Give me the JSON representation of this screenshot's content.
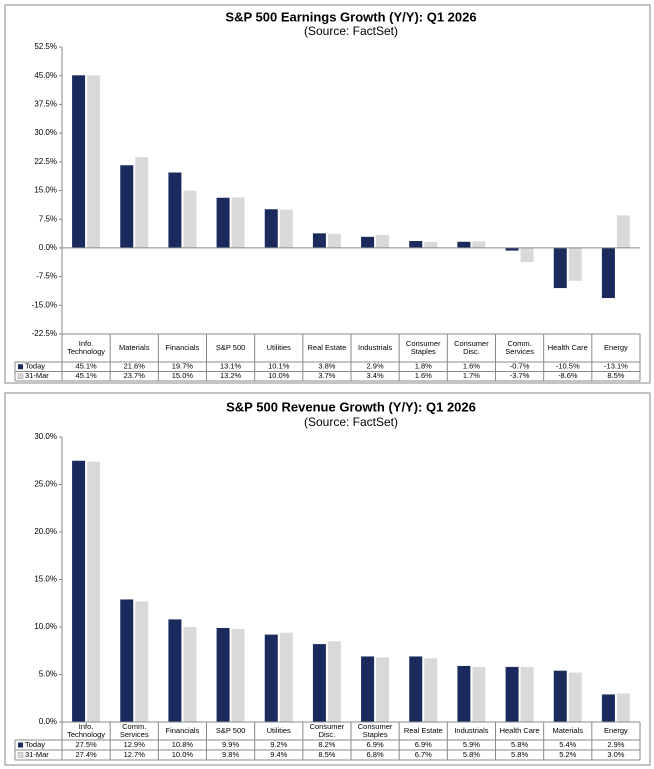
{
  "chart_data": [
    {
      "type": "bar",
      "title": "S&P 500 Earnings Growth (Y/Y): Q1 2026",
      "subtitle": "(Source: FactSet)",
      "categories": [
        "Info. Technology",
        "Materials",
        "Financials",
        "S&P 500",
        "Utilities",
        "Real Estate",
        "Industrials",
        "Consumer Staples",
        "Consumer Disc.",
        "Comm. Services",
        "Health Care",
        "Energy"
      ],
      "series": [
        {
          "name": "Today",
          "color": "#1b2a5c",
          "values": [
            45.1,
            21.6,
            19.7,
            13.1,
            10.1,
            3.8,
            2.9,
            1.8,
            1.6,
            -0.7,
            -10.5,
            -13.1
          ],
          "value_labels": [
            "45.1%",
            "21.6%",
            "19.7%",
            "13.1%",
            "10.1%",
            "3.8%",
            "2.9%",
            "1.8%",
            "1.6%",
            "-0.7%",
            "-10.5%",
            "-13.1%"
          ]
        },
        {
          "name": "31-Mar",
          "color": "#d9d9d9",
          "values": [
            45.1,
            23.7,
            15.0,
            13.2,
            10.0,
            3.7,
            3.4,
            1.6,
            1.7,
            -3.7,
            -8.6,
            8.5
          ],
          "value_labels": [
            "45.1%",
            "23.7%",
            "15.0%",
            "13.2%",
            "10.0%",
            "3.7%",
            "3.4%",
            "1.6%",
            "1.7%",
            "-3.7%",
            "-8.6%",
            "8.5%"
          ]
        }
      ],
      "ylim": [
        -22.5,
        52.5
      ],
      "yticks": [
        {
          "value": -22.5,
          "label": "-22.5%"
        },
        {
          "value": -15,
          "label": "-15.0%"
        },
        {
          "value": -7.5,
          "label": "-7.5%"
        },
        {
          "value": 0,
          "label": "0.0%"
        },
        {
          "value": 7.5,
          "label": "7.5%"
        },
        {
          "value": 15,
          "label": "15.0%"
        },
        {
          "value": 22.5,
          "label": "22.5%"
        },
        {
          "value": 30,
          "label": "30.0%"
        },
        {
          "value": 37.5,
          "label": "37.5%"
        },
        {
          "value": 45,
          "label": "45.0%"
        },
        {
          "value": 52.5,
          "label": "52.5%"
        }
      ],
      "grid": false
    },
    {
      "type": "bar",
      "title": "S&P 500 Revenue Growth (Y/Y): Q1 2026",
      "subtitle": "(Source: FactSet)",
      "categories": [
        "Info. Technology",
        "Comm. Services",
        "Financials",
        "S&P 500",
        "Utilities",
        "Consumer Disc.",
        "Consumer Staples",
        "Real Estate",
        "Industrials",
        "Health Care",
        "Materials",
        "Energy"
      ],
      "series": [
        {
          "name": "Today",
          "color": "#1b2a5c",
          "values": [
            27.5,
            12.9,
            10.8,
            9.9,
            9.2,
            8.2,
            6.9,
            6.9,
            5.9,
            5.8,
            5.4,
            2.9
          ],
          "value_labels": [
            "27.5%",
            "12.9%",
            "10.8%",
            "9.9%",
            "9.2%",
            "8.2%",
            "6.9%",
            "6.9%",
            "5.9%",
            "5.8%",
            "5.4%",
            "2.9%"
          ]
        },
        {
          "name": "31-Mar",
          "color": "#d9d9d9",
          "values": [
            27.4,
            12.7,
            10.0,
            9.8,
            9.4,
            8.5,
            6.8,
            6.7,
            5.8,
            5.8,
            5.2,
            3.0
          ],
          "value_labels": [
            "27.4%",
            "12.7%",
            "10.0%",
            "9.8%",
            "9.4%",
            "8.5%",
            "6.8%",
            "6.7%",
            "5.8%",
            "5.8%",
            "5.2%",
            "3.0%"
          ]
        }
      ],
      "ylim": [
        0,
        30
      ],
      "yticks": [
        {
          "value": 0,
          "label": "0.0%"
        },
        {
          "value": 5,
          "label": "5.0%"
        },
        {
          "value": 10,
          "label": "10.0%"
        },
        {
          "value": 15,
          "label": "15.0%"
        },
        {
          "value": 20,
          "label": "20.0%"
        },
        {
          "value": 25,
          "label": "25.0%"
        },
        {
          "value": 30,
          "label": "30.0%"
        }
      ],
      "grid": false
    }
  ]
}
